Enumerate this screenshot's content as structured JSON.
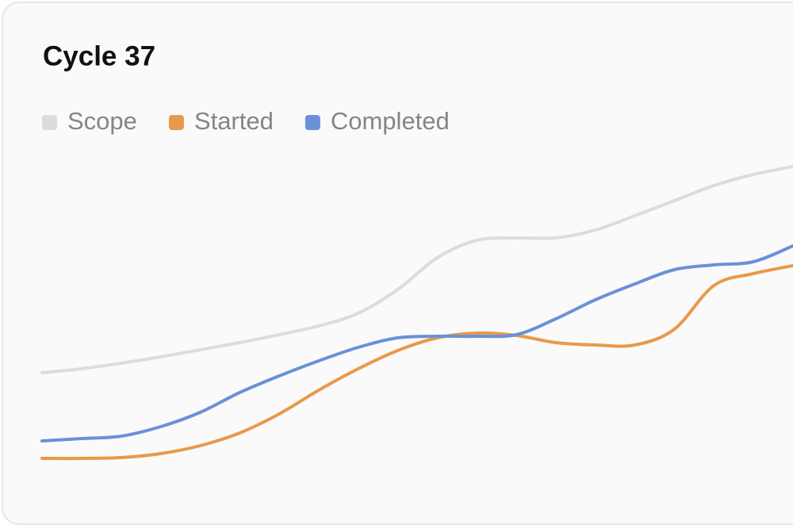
{
  "chart_data": {
    "type": "line",
    "title": "Cycle 37",
    "categories": [
      null,
      null,
      null,
      null,
      null,
      null,
      null,
      null,
      null,
      null,
      null,
      null,
      null,
      null,
      null,
      null,
      null,
      null,
      null,
      null
    ],
    "ylim": [
      0,
      100
    ],
    "series": [
      {
        "name": "Scope",
        "color": "#dcdcdc",
        "values": [
          32.5,
          33.75,
          35.5,
          37.5,
          39.75,
          42,
          44.5,
          47.25,
          51.25,
          58.75,
          68.75,
          74.25,
          75,
          75,
          77.5,
          82,
          86.75,
          91.5,
          95,
          97.5
        ]
      },
      {
        "name": "Started",
        "color": "#e9994a",
        "values": [
          5.5,
          5.5,
          5.75,
          7,
          9.5,
          13.5,
          19.5,
          27,
          33.75,
          39.5,
          43.5,
          45,
          44.25,
          42,
          41.25,
          41.25,
          46.25,
          60,
          63.75,
          66.25
        ]
      },
      {
        "name": "Completed",
        "color": "#6a91d8",
        "values": [
          11,
          11.75,
          12.5,
          15.5,
          20,
          26.25,
          31.5,
          36.25,
          40.5,
          43.5,
          44,
          44,
          44.5,
          49.5,
          55.5,
          60.5,
          65,
          66.5,
          67.5,
          72.5
        ]
      }
    ]
  }
}
